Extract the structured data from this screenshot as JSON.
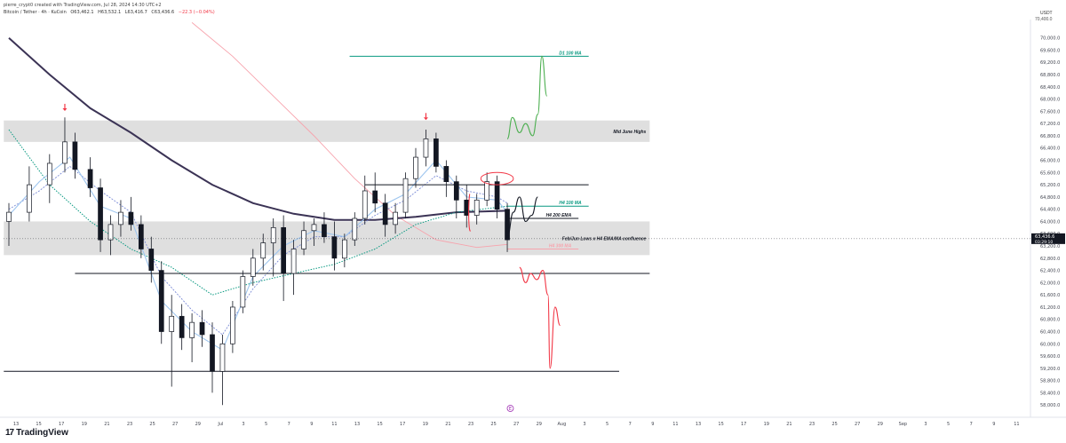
{
  "header": {
    "published": "pierre_crypt0 created with TradingView.com, Jul 28, 2024 14:30 UTC+2",
    "symbol": "Bitcoin / Tether · 4h · KuCoin",
    "open": "O63,462.1",
    "high": "H63,532.1",
    "low": "L63,416.7",
    "close": "C63,436.6",
    "change": "−22.3 (−0.04%)"
  },
  "price_axis": {
    "currency": "USDT",
    "top_value": "70,400.0",
    "current_price": "63,436.6",
    "countdown": "03:29:10",
    "accent": "#131722"
  },
  "brand": {
    "logo": "17",
    "name": "TradingView",
    "logo_icon": "tradingview-logo-icon"
  },
  "event_marker": {
    "label": "E",
    "color": "#9c27b0"
  },
  "chart_data": {
    "type": "line",
    "ylim": [
      57600,
      70600
    ],
    "y_ticks": [
      58000,
      58400,
      58800,
      59200,
      59600,
      60000,
      60400,
      60800,
      61200,
      61600,
      62000,
      62400,
      62800,
      63200,
      63600,
      64000,
      64400,
      64800,
      65200,
      65600,
      66000,
      66400,
      66800,
      67200,
      67600,
      68000,
      68400,
      68800,
      69200,
      69600,
      70000
    ],
    "x_ticks": [
      "13",
      "15",
      "17",
      "19",
      "21",
      "23",
      "25",
      "27",
      "29",
      "Jul",
      "3",
      "5",
      "7",
      "9",
      "11",
      "13",
      "15",
      "17",
      "19",
      "21",
      "23",
      "25",
      "27",
      "29",
      "Aug",
      "3",
      "5",
      "7",
      "9",
      "11",
      "13",
      "15",
      "17",
      "19",
      "21",
      "23",
      "25",
      "27",
      "29",
      "Sep",
      "3",
      "5",
      "7",
      "9",
      "11"
    ],
    "candles": [
      {
        "x": 0,
        "o": 64000,
        "h": 64600,
        "l": 63200,
        "c": 64300
      },
      {
        "x": 2,
        "o": 64300,
        "h": 65800,
        "l": 64000,
        "c": 65200
      },
      {
        "x": 4,
        "o": 65200,
        "h": 66200,
        "l": 64600,
        "c": 65900
      },
      {
        "x": 5.5,
        "o": 65900,
        "h": 67400,
        "l": 65600,
        "c": 66600
      },
      {
        "x": 6.5,
        "o": 66600,
        "h": 66900,
        "l": 65400,
        "c": 65700
      },
      {
        "x": 8,
        "o": 65700,
        "h": 66100,
        "l": 64800,
        "c": 65100
      },
      {
        "x": 9,
        "o": 65100,
        "h": 65400,
        "l": 63000,
        "c": 63400
      },
      {
        "x": 10,
        "o": 63400,
        "h": 64200,
        "l": 62900,
        "c": 63900
      },
      {
        "x": 11,
        "o": 63900,
        "h": 64700,
        "l": 63500,
        "c": 64300
      },
      {
        "x": 12,
        "o": 64300,
        "h": 64800,
        "l": 63700,
        "c": 63900
      },
      {
        "x": 13,
        "o": 63900,
        "h": 64200,
        "l": 62800,
        "c": 63100
      },
      {
        "x": 14,
        "o": 63100,
        "h": 63500,
        "l": 62000,
        "c": 62400
      },
      {
        "x": 15,
        "o": 62400,
        "h": 62700,
        "l": 60000,
        "c": 60400
      },
      {
        "x": 16,
        "o": 60400,
        "h": 61600,
        "l": 58600,
        "c": 60900
      },
      {
        "x": 17,
        "o": 60900,
        "h": 61300,
        "l": 59800,
        "c": 60200
      },
      {
        "x": 18,
        "o": 60200,
        "h": 61000,
        "l": 59400,
        "c": 60700
      },
      {
        "x": 19,
        "o": 60700,
        "h": 61100,
        "l": 59900,
        "c": 60300
      },
      {
        "x": 20,
        "o": 60300,
        "h": 60700,
        "l": 58400,
        "c": 59100
      },
      {
        "x": 21,
        "o": 59100,
        "h": 60300,
        "l": 58000,
        "c": 60000
      },
      {
        "x": 22,
        "o": 60000,
        "h": 61400,
        "l": 59700,
        "c": 61200
      },
      {
        "x": 23,
        "o": 61200,
        "h": 62400,
        "l": 61000,
        "c": 62200
      },
      {
        "x": 24,
        "o": 62200,
        "h": 63100,
        "l": 61900,
        "c": 62800
      },
      {
        "x": 25,
        "o": 62800,
        "h": 63600,
        "l": 62400,
        "c": 63300
      },
      {
        "x": 26,
        "o": 63300,
        "h": 64100,
        "l": 62200,
        "c": 63800
      },
      {
        "x": 27,
        "o": 63800,
        "h": 64200,
        "l": 61400,
        "c": 62300
      },
      {
        "x": 28,
        "o": 62300,
        "h": 63400,
        "l": 61600,
        "c": 63100
      },
      {
        "x": 29,
        "o": 63100,
        "h": 64000,
        "l": 62900,
        "c": 63700
      },
      {
        "x": 30,
        "o": 63700,
        "h": 64100,
        "l": 63200,
        "c": 63900
      },
      {
        "x": 31,
        "o": 63900,
        "h": 64300,
        "l": 63300,
        "c": 63500
      },
      {
        "x": 32,
        "o": 63500,
        "h": 64000,
        "l": 62400,
        "c": 62800
      },
      {
        "x": 33,
        "o": 62800,
        "h": 63600,
        "l": 62500,
        "c": 63400
      },
      {
        "x": 34,
        "o": 63400,
        "h": 64300,
        "l": 63200,
        "c": 64100
      },
      {
        "x": 35,
        "o": 64100,
        "h": 65500,
        "l": 63900,
        "c": 65000
      },
      {
        "x": 36,
        "o": 65000,
        "h": 65600,
        "l": 64300,
        "c": 64600
      },
      {
        "x": 37,
        "o": 64600,
        "h": 64900,
        "l": 63500,
        "c": 63900
      },
      {
        "x": 38,
        "o": 63900,
        "h": 64600,
        "l": 63600,
        "c": 64300
      },
      {
        "x": 39,
        "o": 64300,
        "h": 65600,
        "l": 64100,
        "c": 65400
      },
      {
        "x": 40,
        "o": 65400,
        "h": 66400,
        "l": 65100,
        "c": 66100
      },
      {
        "x": 41,
        "o": 66100,
        "h": 67000,
        "l": 65800,
        "c": 66700
      },
      {
        "x": 42,
        "o": 66700,
        "h": 66900,
        "l": 65600,
        "c": 65800
      },
      {
        "x": 43,
        "o": 65800,
        "h": 66000,
        "l": 64800,
        "c": 65300
      },
      {
        "x": 44,
        "o": 65300,
        "h": 65500,
        "l": 64100,
        "c": 64700
      },
      {
        "x": 45,
        "o": 64700,
        "h": 65200,
        "l": 63800,
        "c": 64200
      },
      {
        "x": 46,
        "o": 64200,
        "h": 64900,
        "l": 63900,
        "c": 64700
      },
      {
        "x": 47,
        "o": 64700,
        "h": 65600,
        "l": 64500,
        "c": 65300
      },
      {
        "x": 48,
        "o": 65300,
        "h": 65500,
        "l": 64100,
        "c": 64400
      },
      {
        "x": 49,
        "o": 64400,
        "h": 64600,
        "l": 63000,
        "c": 63400
      }
    ],
    "ema_200": [
      {
        "x": 0,
        "y": 70000
      },
      {
        "x": 4,
        "y": 68800
      },
      {
        "x": 8,
        "y": 67700
      },
      {
        "x": 12,
        "y": 66900
      },
      {
        "x": 16,
        "y": 66000
      },
      {
        "x": 20,
        "y": 65200
      },
      {
        "x": 24,
        "y": 64600
      },
      {
        "x": 28,
        "y": 64250
      },
      {
        "x": 32,
        "y": 64050
      },
      {
        "x": 36,
        "y": 64050
      },
      {
        "x": 40,
        "y": 64150
      },
      {
        "x": 44,
        "y": 64300
      },
      {
        "x": 49,
        "y": 64350
      }
    ],
    "ma_300": [
      {
        "x": 18,
        "y": 70500
      },
      {
        "x": 22,
        "y": 69400
      },
      {
        "x": 26,
        "y": 68100
      },
      {
        "x": 30,
        "y": 66800
      },
      {
        "x": 34,
        "y": 65400
      },
      {
        "x": 38,
        "y": 64200
      },
      {
        "x": 42,
        "y": 63400
      },
      {
        "x": 46,
        "y": 63150
      },
      {
        "x": 49,
        "y": 63250
      }
    ],
    "ma_100": [
      {
        "x": 0,
        "y": 67000
      },
      {
        "x": 4,
        "y": 65200
      },
      {
        "x": 8,
        "y": 64000
      },
      {
        "x": 12,
        "y": 63100
      },
      {
        "x": 16,
        "y": 62500
      },
      {
        "x": 20,
        "y": 61600
      },
      {
        "x": 24,
        "y": 62000
      },
      {
        "x": 28,
        "y": 62300
      },
      {
        "x": 32,
        "y": 62600
      },
      {
        "x": 36,
        "y": 63100
      },
      {
        "x": 40,
        "y": 63900
      },
      {
        "x": 44,
        "y": 64300
      },
      {
        "x": 49,
        "y": 64500
      }
    ],
    "ema_fast": [
      {
        "x": 0,
        "y": 64200
      },
      {
        "x": 3,
        "y": 65300
      },
      {
        "x": 6,
        "y": 66100
      },
      {
        "x": 9,
        "y": 64500
      },
      {
        "x": 12,
        "y": 64100
      },
      {
        "x": 15,
        "y": 61400
      },
      {
        "x": 18,
        "y": 60400
      },
      {
        "x": 21,
        "y": 59800
      },
      {
        "x": 24,
        "y": 62200
      },
      {
        "x": 27,
        "y": 63200
      },
      {
        "x": 30,
        "y": 63700
      },
      {
        "x": 33,
        "y": 63500
      },
      {
        "x": 36,
        "y": 64400
      },
      {
        "x": 39,
        "y": 64900
      },
      {
        "x": 42,
        "y": 66000
      },
      {
        "x": 45,
        "y": 64800
      },
      {
        "x": 48,
        "y": 64700
      },
      {
        "x": 49,
        "y": 64300
      }
    ],
    "ema_mid": [
      {
        "x": 0,
        "y": 64400
      },
      {
        "x": 3,
        "y": 65000
      },
      {
        "x": 6,
        "y": 65800
      },
      {
        "x": 9,
        "y": 65000
      },
      {
        "x": 12,
        "y": 64300
      },
      {
        "x": 15,
        "y": 62200
      },
      {
        "x": 18,
        "y": 61100
      },
      {
        "x": 21,
        "y": 60300
      },
      {
        "x": 24,
        "y": 61800
      },
      {
        "x": 27,
        "y": 62900
      },
      {
        "x": 30,
        "y": 63500
      },
      {
        "x": 33,
        "y": 63500
      },
      {
        "x": 36,
        "y": 64200
      },
      {
        "x": 39,
        "y": 64700
      },
      {
        "x": 42,
        "y": 65500
      },
      {
        "x": 45,
        "y": 65000
      },
      {
        "x": 48,
        "y": 64800
      },
      {
        "x": 49,
        "y": 64600
      }
    ],
    "zones": [
      {
        "label": "Mid June Highs",
        "y_low": 66600,
        "y_high": 67300,
        "x_from": -0.5,
        "x_to": 63
      },
      {
        "label": "Feb/Jun Lows x H4 EMA/MA confluence",
        "y_low": 62900,
        "y_high": 64000,
        "x_from": -0.5,
        "x_to": 63
      }
    ],
    "levels": [
      {
        "label": "D1 100 MA",
        "y": 69400,
        "x_from": 33.5,
        "x_to": 57,
        "color": "#089981"
      },
      {
        "label": "H4 100 MA",
        "y": 64500,
        "x_from": 49,
        "x_to": 57,
        "color": "#089981"
      },
      {
        "label": "H4 200 EMA",
        "y": 64100,
        "x_from": 49,
        "x_to": 56,
        "color": "#131722"
      },
      {
        "label": "H4 300 MA",
        "y": 63100,
        "x_from": 49,
        "x_to": 56,
        "color": "#f7a3ad"
      },
      {
        "label": "",
        "y": 65200,
        "x_from": 35,
        "x_to": 57,
        "color": "#131722"
      },
      {
        "label": "",
        "y": 62300,
        "x_from": 6.5,
        "x_to": 63,
        "color": "#131722"
      },
      {
        "label": "",
        "y": 59100,
        "x_from": -0.5,
        "x_to": 60,
        "color": "#131722"
      }
    ],
    "arrows": [
      {
        "x": 5.5,
        "y": 67700,
        "color": "#f23645"
      },
      {
        "x": 41,
        "y": 67400,
        "color": "#f23645"
      }
    ],
    "projections": {
      "bull_green": [
        {
          "x": 49,
          "y": 66700
        },
        {
          "x": 49.5,
          "y": 67400
        },
        {
          "x": 50.2,
          "y": 66900
        },
        {
          "x": 50.8,
          "y": 67200
        },
        {
          "x": 51.5,
          "y": 66800
        },
        {
          "x": 52,
          "y": 67500
        },
        {
          "x": 52.4,
          "y": 69400
        },
        {
          "x": 52.9,
          "y": 68100
        }
      ],
      "mid_black": [
        {
          "x": 49,
          "y": 63500
        },
        {
          "x": 49.6,
          "y": 64300
        },
        {
          "x": 50.2,
          "y": 64800
        },
        {
          "x": 50.8,
          "y": 64000
        },
        {
          "x": 51.4,
          "y": 64200
        },
        {
          "x": 52,
          "y": 64800
        }
      ],
      "bear_red": [
        {
          "x": 50.2,
          "y": 62500
        },
        {
          "x": 50.8,
          "y": 62000
        },
        {
          "x": 51.3,
          "y": 62300
        },
        {
          "x": 51.9,
          "y": 62100
        },
        {
          "x": 52.5,
          "y": 62400
        },
        {
          "x": 53,
          "y": 61600
        },
        {
          "x": 53.2,
          "y": 59200
        },
        {
          "x": 53.7,
          "y": 61200
        },
        {
          "x": 54.2,
          "y": 60600
        }
      ],
      "red_ellipse": {
        "x": 48,
        "y": 65400,
        "rx": 1.6,
        "ry": 200
      },
      "red_wick_mark": {
        "x": 45.3,
        "y": 63800
      }
    },
    "current_price": 63436.6,
    "event_marker_x": 49.3
  }
}
